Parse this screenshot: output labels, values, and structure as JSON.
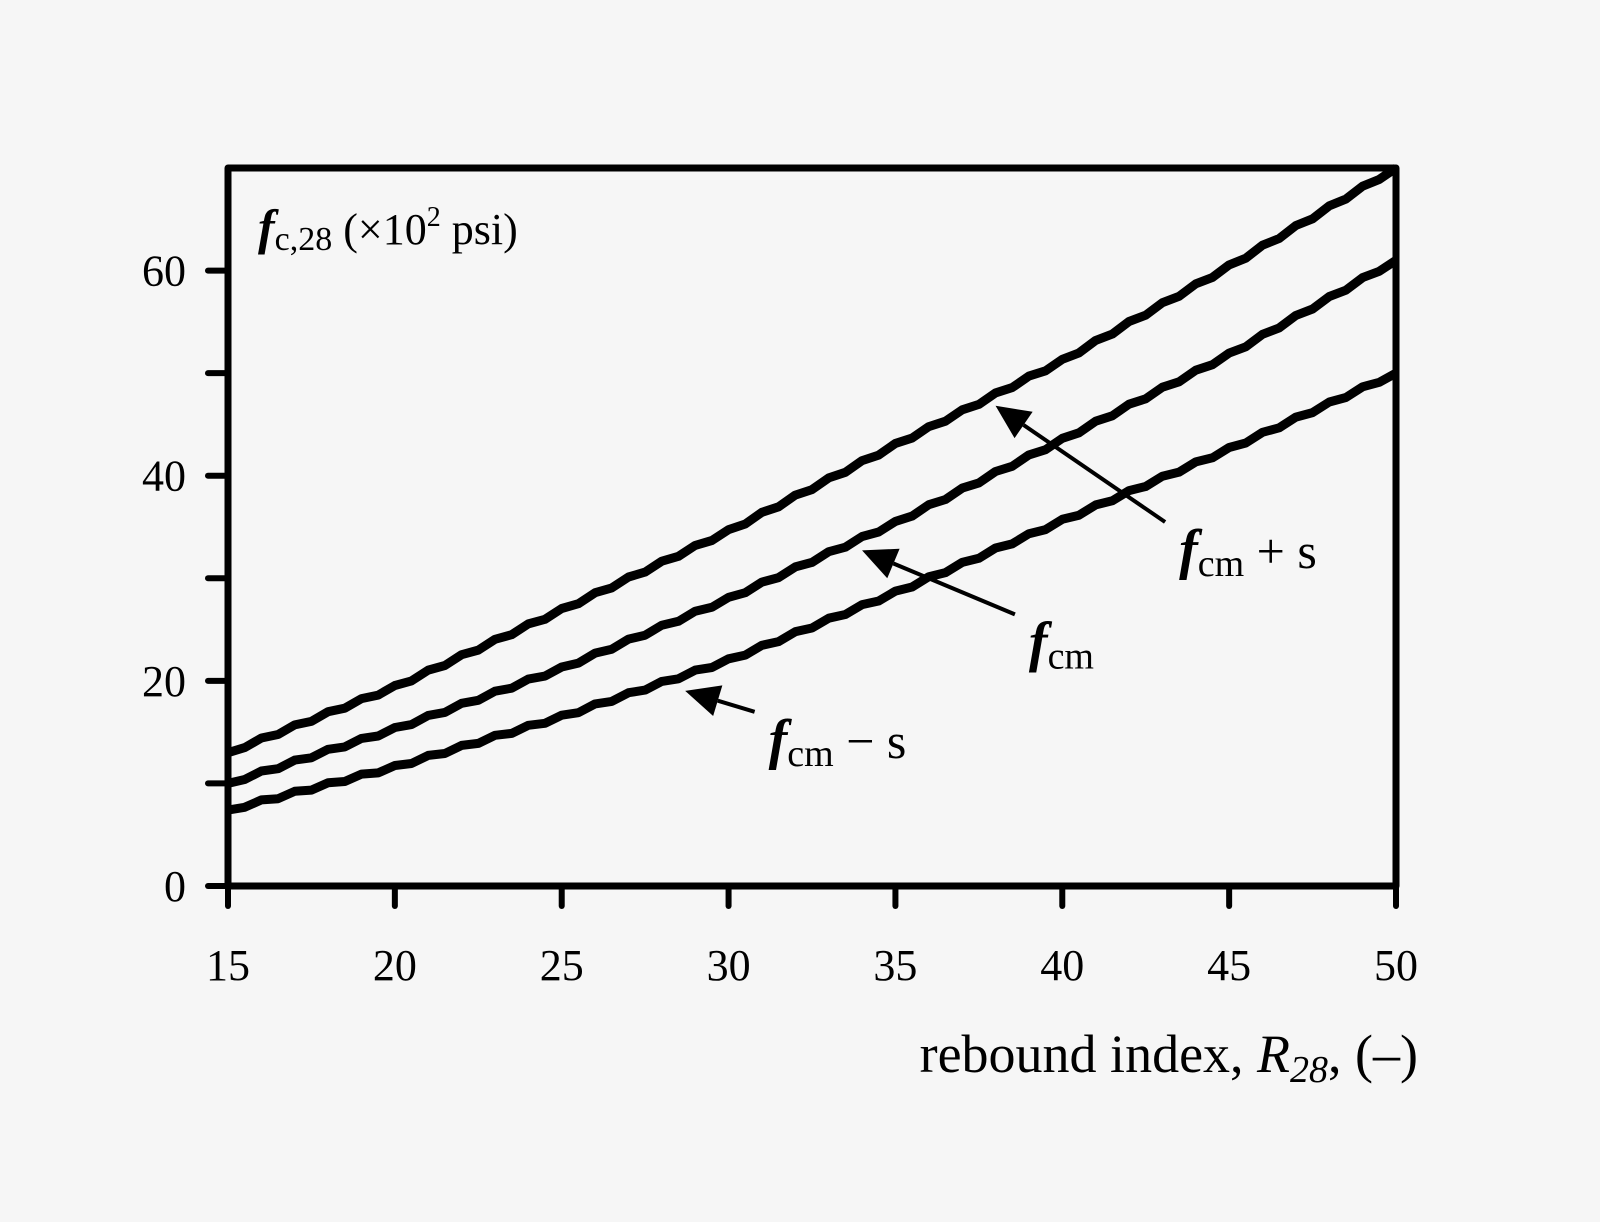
{
  "chart_data": {
    "type": "line",
    "title": "",
    "xlabel": "rebound index, R28, (–)",
    "xlabel_parts": {
      "main": "rebound index, ",
      "var": "R",
      "sub": "28",
      "tail": ", (–)"
    },
    "ylabel": "fc,28 (×10² psi)",
    "ylabel_parts": {
      "var": "f",
      "sub": "c,28",
      "unit_open": " (×10",
      "sup": "2",
      "unit_close": " psi)"
    },
    "xlim": [
      15,
      50
    ],
    "ylim": [
      0,
      70
    ],
    "x_ticks": [
      15,
      20,
      25,
      30,
      35,
      40,
      45,
      50
    ],
    "x_tick_labels": [
      "15",
      "20",
      "25",
      "30",
      "35",
      "40",
      "45",
      "50"
    ],
    "y_ticks": [
      0,
      10,
      20,
      30,
      40,
      50,
      60
    ],
    "y_tick_labels": [
      "0",
      "",
      "20",
      "",
      "40",
      "",
      "60"
    ],
    "grid": false,
    "legend": "none (inline arrow annotations)",
    "x": [
      15,
      20,
      25,
      30,
      35,
      40,
      45,
      50
    ],
    "series": [
      {
        "name": "fcm + s",
        "values": [
          13.0,
          19.4,
          26.9,
          34.6,
          43.0,
          51.2,
          60.4,
          70.0
        ]
      },
      {
        "name": "fcm",
        "values": [
          10.0,
          15.3,
          21.2,
          28.0,
          35.4,
          43.5,
          51.8,
          61.0
        ]
      },
      {
        "name": "fcm − s",
        "values": [
          7.4,
          11.6,
          16.5,
          22.0,
          28.6,
          35.6,
          42.6,
          50.0
        ]
      }
    ],
    "annotations": [
      {
        "series": "fcm + s",
        "label_var": "f",
        "label_sub": "cm",
        "label_tail": " + s",
        "arrow_to": [
          38.0,
          47.6
        ],
        "text_at": [
          43.5,
          31
        ]
      },
      {
        "series": "fcm",
        "label_var": "f",
        "label_sub": "cm",
        "label_tail": "",
        "arrow_to": [
          34.0,
          33.5
        ],
        "text_at": [
          39,
          22
        ]
      },
      {
        "series": "fcm − s",
        "label_var": "f",
        "label_sub": "cm",
        "label_tail": " − s",
        "arrow_to": [
          28.7,
          19.8
        ],
        "text_at": [
          31.2,
          12.5
        ]
      }
    ]
  }
}
